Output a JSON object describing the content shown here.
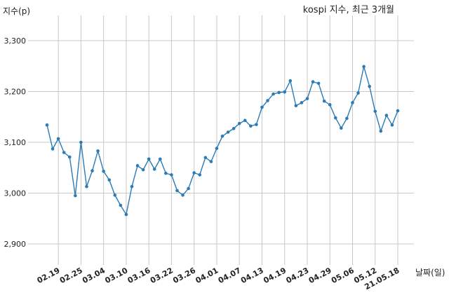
{
  "chart_data": {
    "type": "line",
    "title": "kospi 지수, 최근 3개월",
    "xlabel": "날짜(일)",
    "ylabel": "지수(p)",
    "ylim": [
      2850,
      3350
    ],
    "y_ticks": [
      2900,
      3000,
      3100,
      3200,
      3300
    ],
    "y_tick_labels": [
      "2,900",
      "3,000",
      "3,100",
      "3,200",
      "3,300"
    ],
    "x_tick_labels": [
      "02.19",
      "02.25",
      "03.04",
      "03.10",
      "03.16",
      "03.22",
      "03.26",
      "04.01",
      "04.07",
      "04.13",
      "04.19",
      "04.23",
      "04.29",
      "05.06",
      "05.12",
      "21.05.18"
    ],
    "x_tick_index": [
      2,
      6,
      10,
      14,
      18,
      22,
      26,
      30,
      34,
      38,
      42,
      46,
      50,
      54,
      58,
      62
    ],
    "grid": true,
    "line_color": "#2c7bb6",
    "grid_color": "#c8c8c8",
    "series": [
      {
        "values": [
          3134,
          3087,
          3107,
          3080,
          3071,
          2995,
          3100,
          3013,
          3044,
          3083,
          3043,
          3026,
          2996,
          2976,
          2958,
          3013,
          3054,
          3046,
          3067,
          3047,
          3067,
          3039,
          3036,
          3005,
          2996,
          3009,
          3040,
          3036,
          3070,
          3062,
          3088,
          3112,
          3120,
          3127,
          3137,
          3143,
          3132,
          3135,
          3169,
          3182,
          3195,
          3198,
          3199,
          3221,
          3172,
          3178,
          3186,
          3219,
          3216,
          3181,
          3174,
          3148,
          3128,
          3147,
          3178,
          3197,
          3249,
          3210,
          3161,
          3122,
          3153,
          3134,
          3162
        ]
      }
    ]
  }
}
